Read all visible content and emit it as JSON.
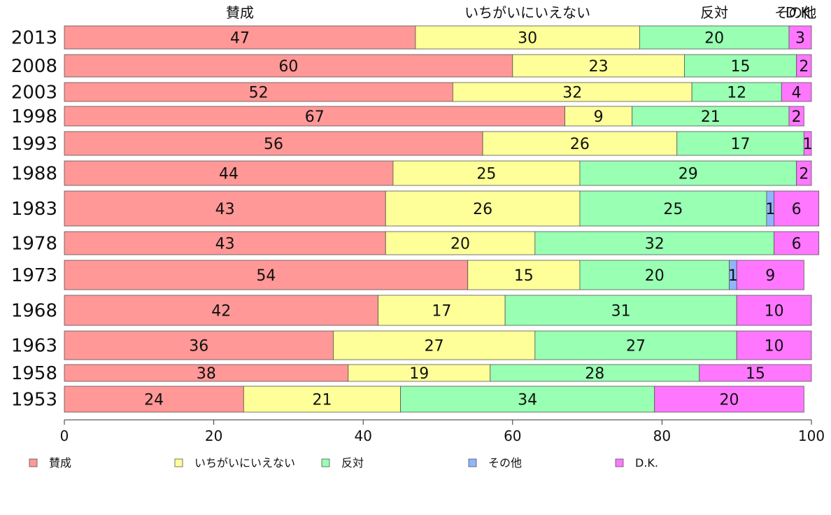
{
  "chart_data": {
    "type": "bar",
    "orientation": "horizontal",
    "stacked": true,
    "categories": [
      "2013",
      "2008",
      "2003",
      "1998",
      "1993",
      "1988",
      "1983",
      "1978",
      "1973",
      "1968",
      "1963",
      "1958",
      "1953"
    ],
    "series": [
      {
        "name": "賛成",
        "color": "#ff9896",
        "values": [
          47,
          60,
          52,
          67,
          56,
          44,
          43,
          43,
          54,
          42,
          36,
          38,
          24
        ]
      },
      {
        "name": "いちがいにいえない",
        "color": "#ffff99",
        "values": [
          30,
          23,
          32,
          9,
          26,
          25,
          26,
          20,
          15,
          17,
          27,
          19,
          21
        ]
      },
      {
        "name": "反対",
        "color": "#98ffb3",
        "values": [
          20,
          15,
          12,
          21,
          17,
          29,
          25,
          32,
          20,
          31,
          27,
          28,
          34
        ]
      },
      {
        "name": "その他",
        "color": "#91b4ff",
        "values": [
          0,
          0,
          0,
          0,
          0,
          0,
          1,
          0,
          1,
          0,
          0,
          0,
          0
        ]
      },
      {
        "name": "D.K.",
        "color": "#ff77ff",
        "values": [
          3,
          2,
          4,
          2,
          1,
          2,
          6,
          6,
          9,
          10,
          10,
          15,
          20
        ]
      }
    ],
    "header_labels": [
      "賛成",
      "いちがいにいえない",
      "反対",
      "その他",
      "D.K."
    ],
    "xlim": [
      0,
      100
    ],
    "xticks": [
      "0",
      "20",
      "40",
      "60",
      "80",
      "100"
    ],
    "legend_position": "bottom",
    "grid": false
  }
}
